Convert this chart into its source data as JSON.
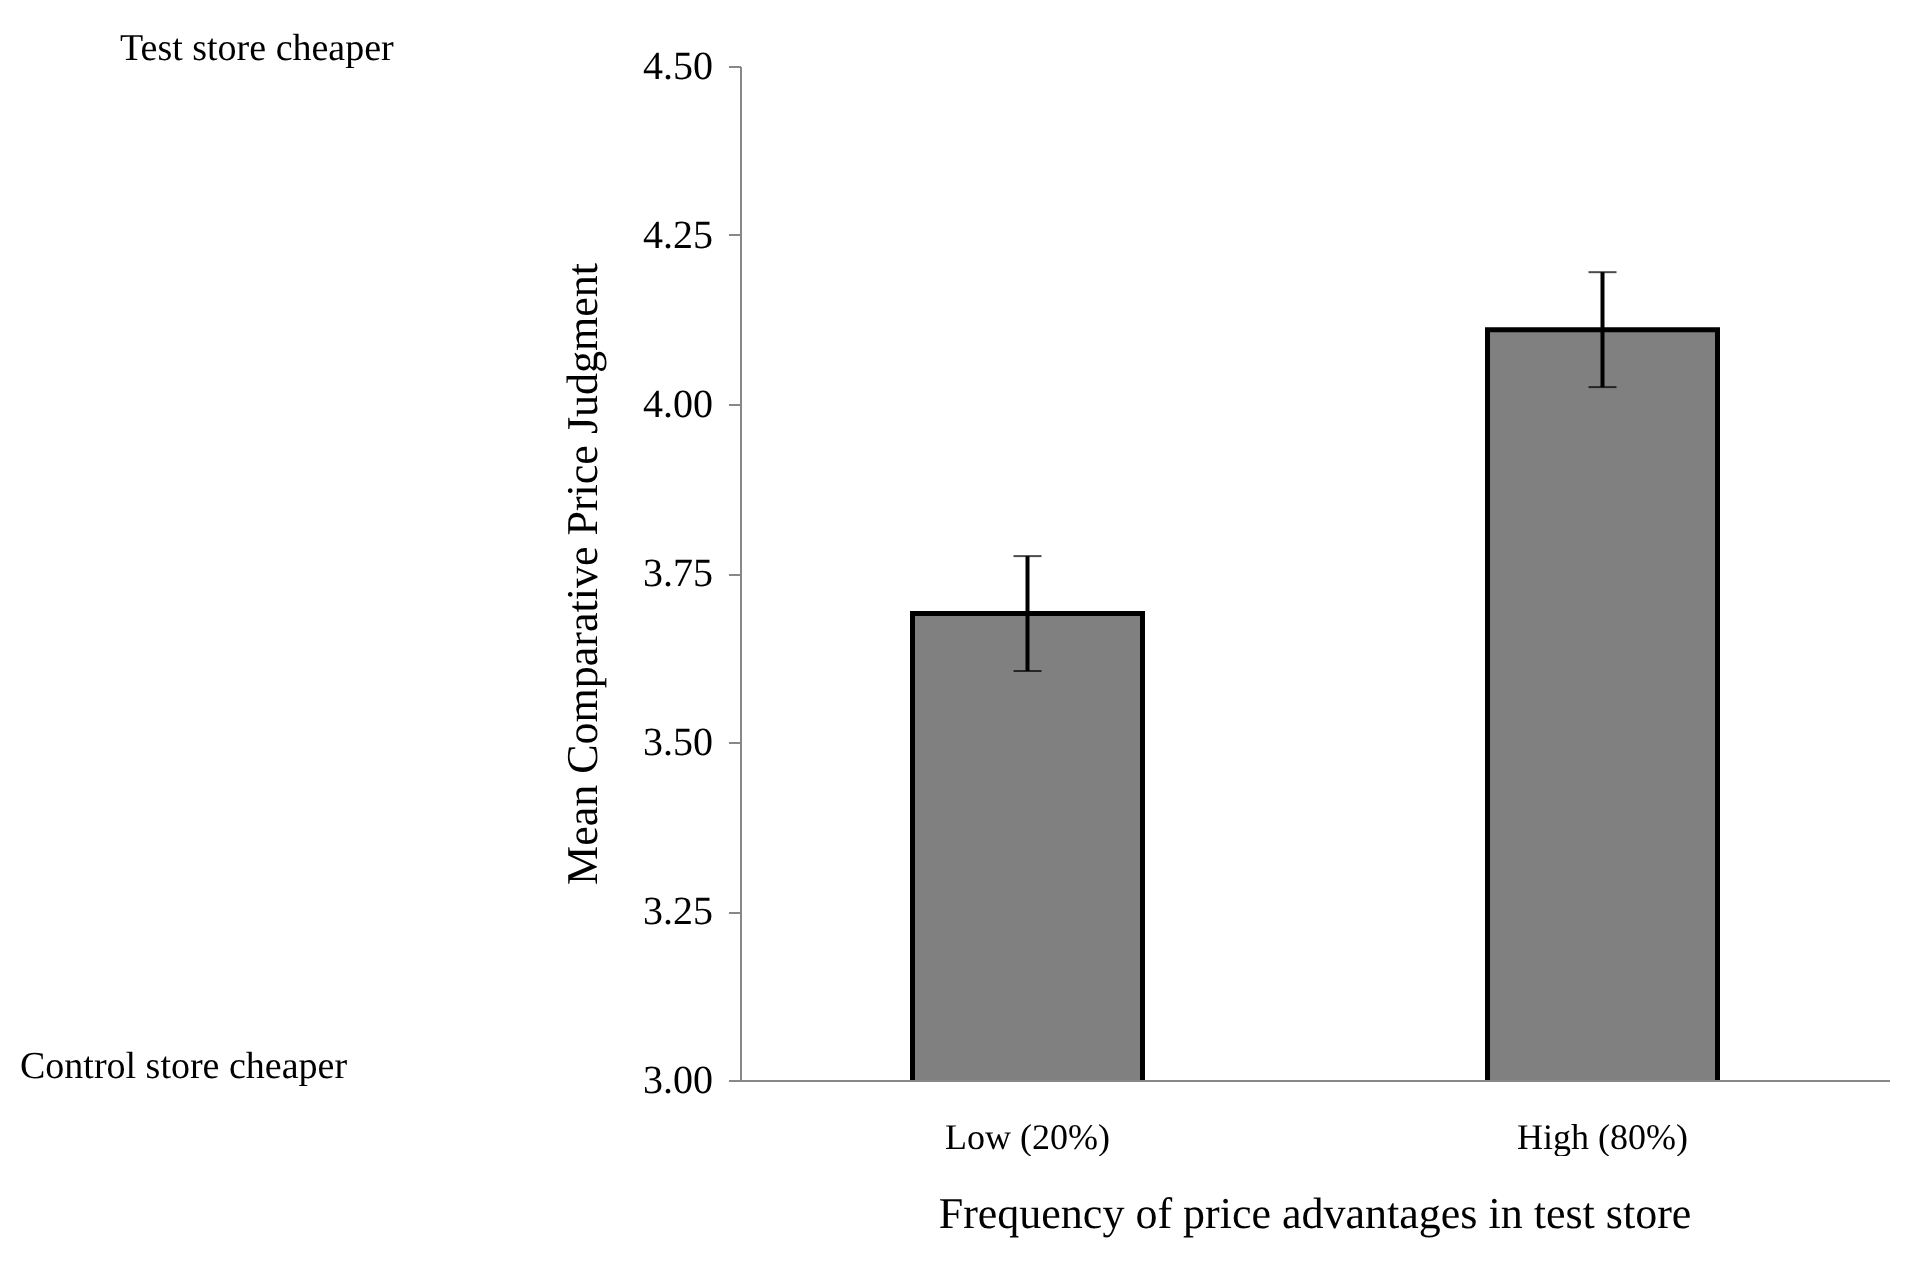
{
  "chart_data": {
    "type": "bar",
    "xlabel": "Frequency of price advantages in test store",
    "ylabel": "Mean Comparative Price Judgment",
    "categories": [
      "Low (20%)",
      "High (80%)"
    ],
    "values": [
      3.69,
      4.11
    ],
    "errors": [
      0.085,
      0.085
    ],
    "color": "#808080",
    "ylim": [
      3,
      4.5
    ],
    "yticks": [
      {
        "value": 3,
        "label": "3.00"
      },
      {
        "value": 3.25,
        "label": "3.25"
      },
      {
        "value": 3.5,
        "label": "3.50"
      },
      {
        "value": 3.75,
        "label": "3.75"
      },
      {
        "value": 4,
        "label": "4.00"
      },
      {
        "value": 4.25,
        "label": "4.25"
      },
      {
        "value": 4.5,
        "label": "4.50"
      }
    ],
    "annotations": [
      "Test store cheaper",
      "Control store cheaper"
    ],
    "grid": false
  }
}
